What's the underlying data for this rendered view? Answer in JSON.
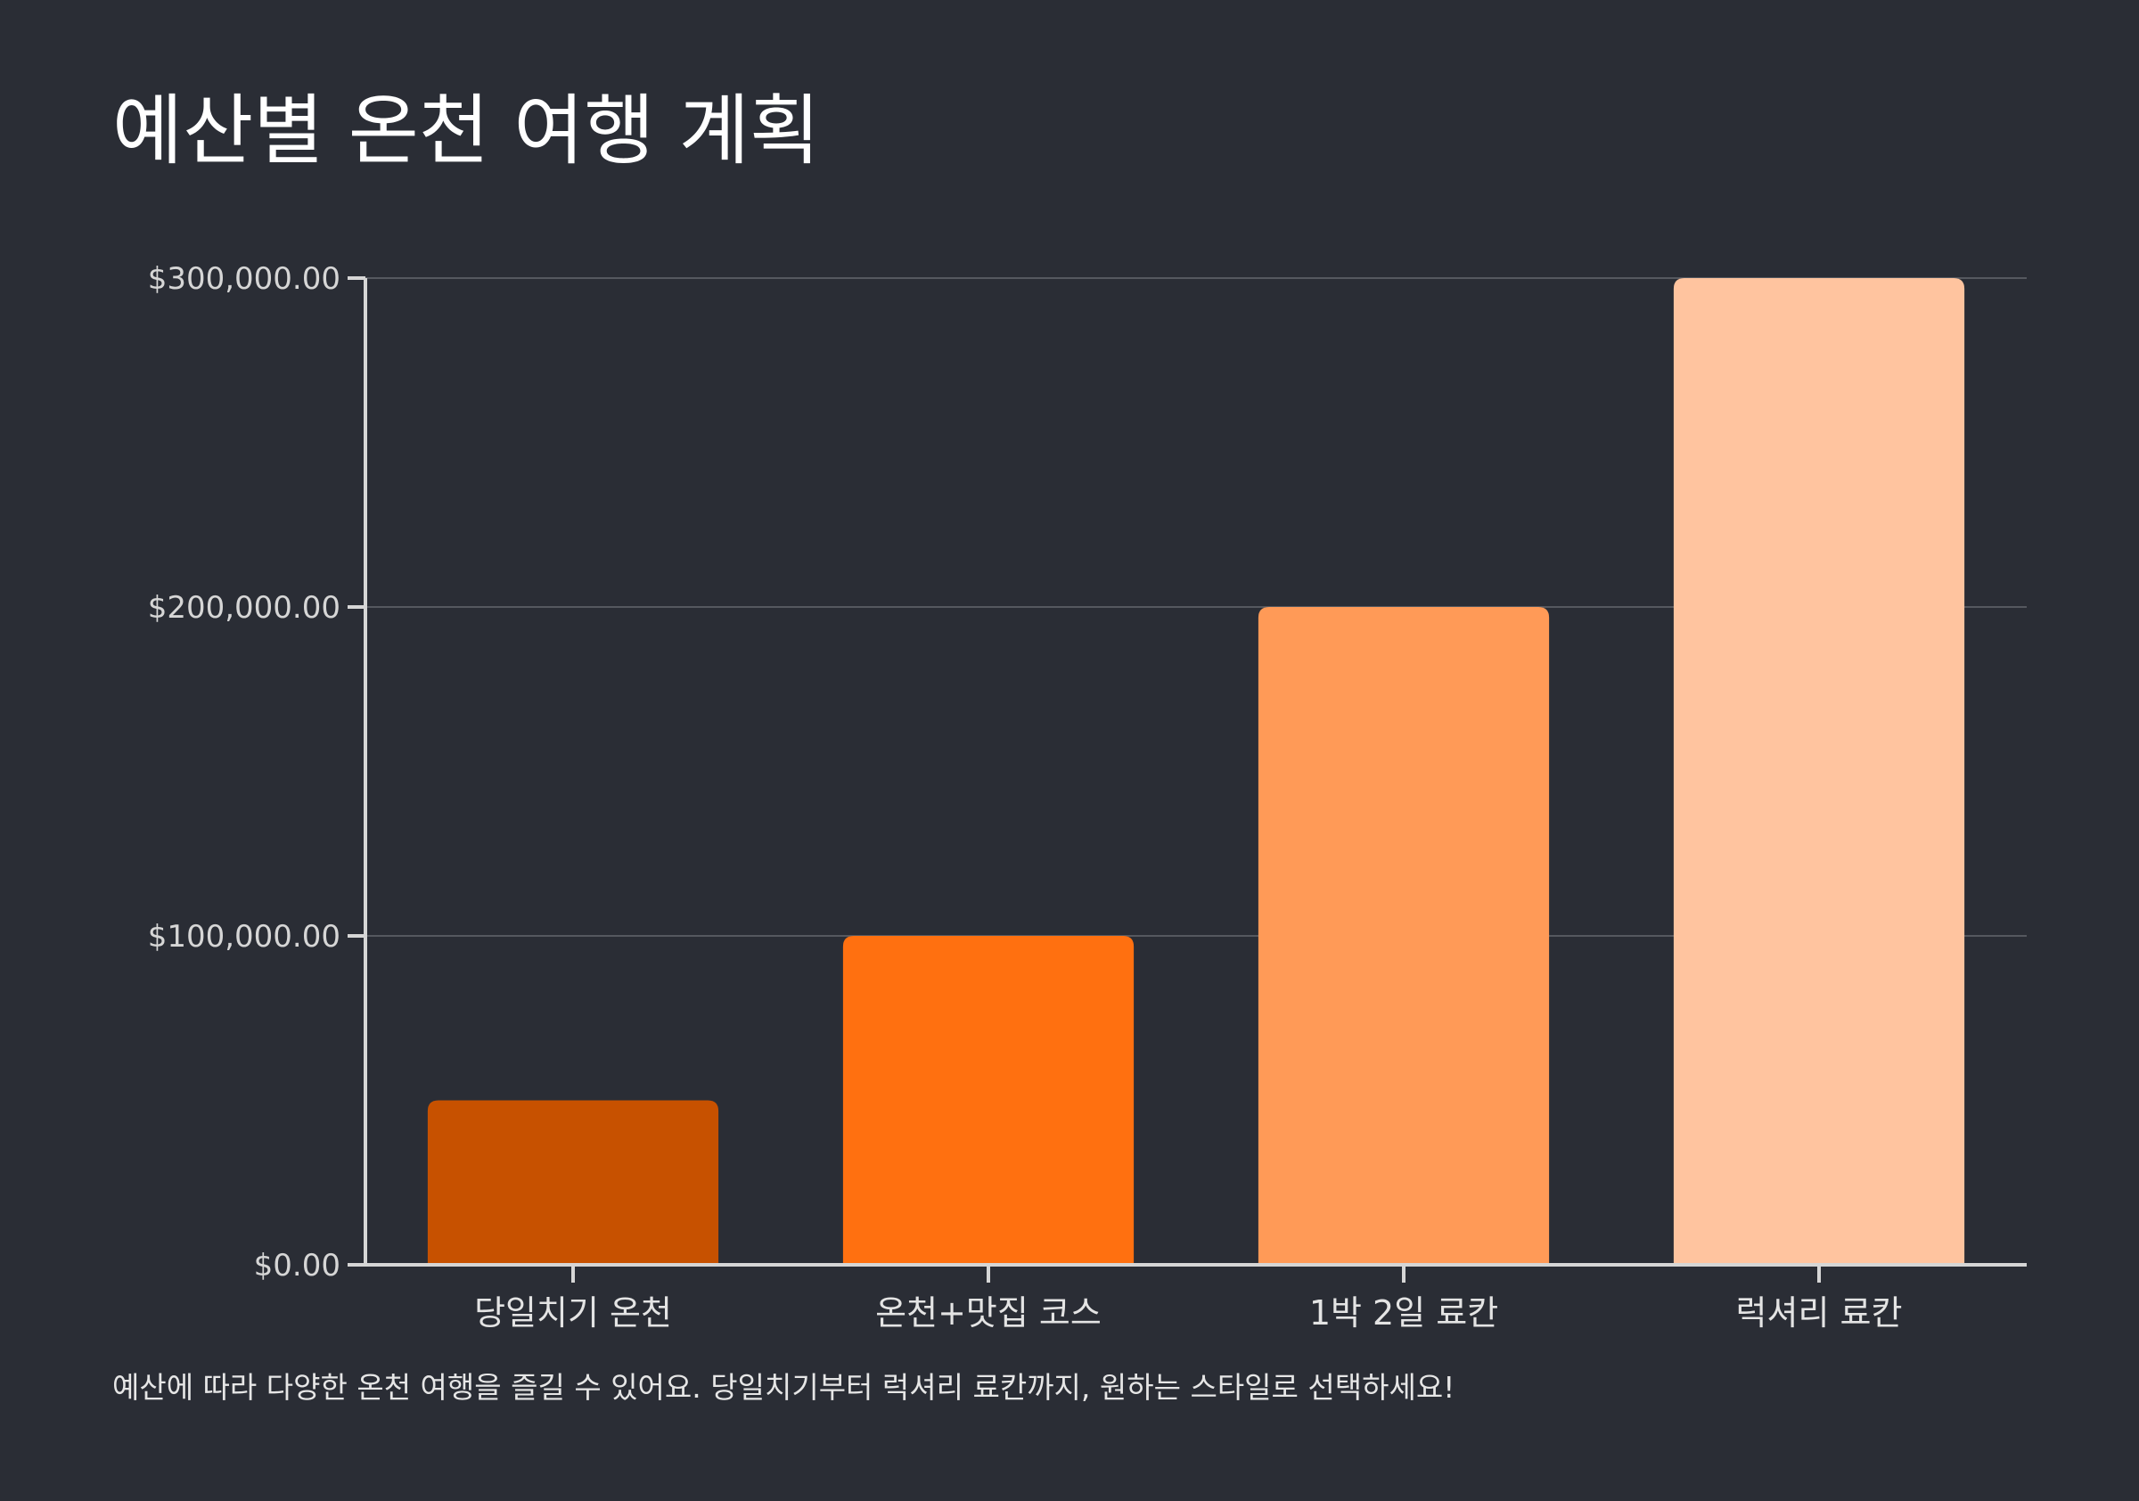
{
  "chart_data": {
    "type": "bar",
    "title": "예산별 온천 여행 계획",
    "caption": "예산에 따라 다양한 온천 여행을 즐길 수 있어요. 당일치기부터 럭셔리 료칸까지, 원하는 스타일로 선택하세요!",
    "categories": [
      "당일치기 온천",
      "온천+맛집 코스",
      "1박 2일 료칸",
      "럭셔리 료칸"
    ],
    "values": [
      50000,
      100000,
      200000,
      300000
    ],
    "colors": [
      "#c75100",
      "#ff7010",
      "#ff9a57",
      "#ffc49f"
    ],
    "ylim": [
      0,
      300000
    ],
    "yticks": [
      0,
      100000,
      200000,
      300000
    ],
    "ytick_labels": [
      "$0.00",
      "$100,000.00",
      "$200,000.00",
      "$300,000.00"
    ],
    "xlabel": "",
    "ylabel": "",
    "grid": true,
    "grid_color": "#55585f",
    "axis_color": "#d6d6d6",
    "background": "#2a2d35"
  }
}
